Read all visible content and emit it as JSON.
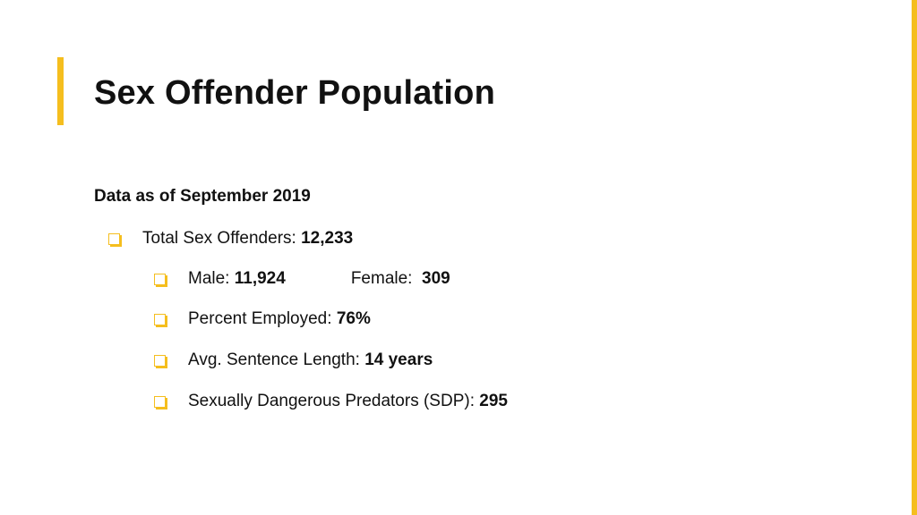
{
  "colors": {
    "accent": "#F5BE1E",
    "text": "#111111",
    "background": "#FFFFFF"
  },
  "slide": {
    "title": "Sex Offender Population",
    "subtitle": "Data as of September 2019",
    "icons": {
      "bullet": "checkbox-square-icon"
    },
    "bullets": {
      "total": {
        "label": "Total Sex Offenders: ",
        "value": "12,233"
      },
      "male": {
        "label": "Male: ",
        "value": "11,924"
      },
      "female": {
        "label": "Female: ",
        "value": "309"
      },
      "employed": {
        "label": "Percent Employed: ",
        "value": "76%"
      },
      "sentence": {
        "label": "Avg. Sentence Length: ",
        "value": "14 years"
      },
      "sdp": {
        "label": "Sexually Dangerous Predators (SDP): ",
        "value": "295"
      }
    }
  }
}
